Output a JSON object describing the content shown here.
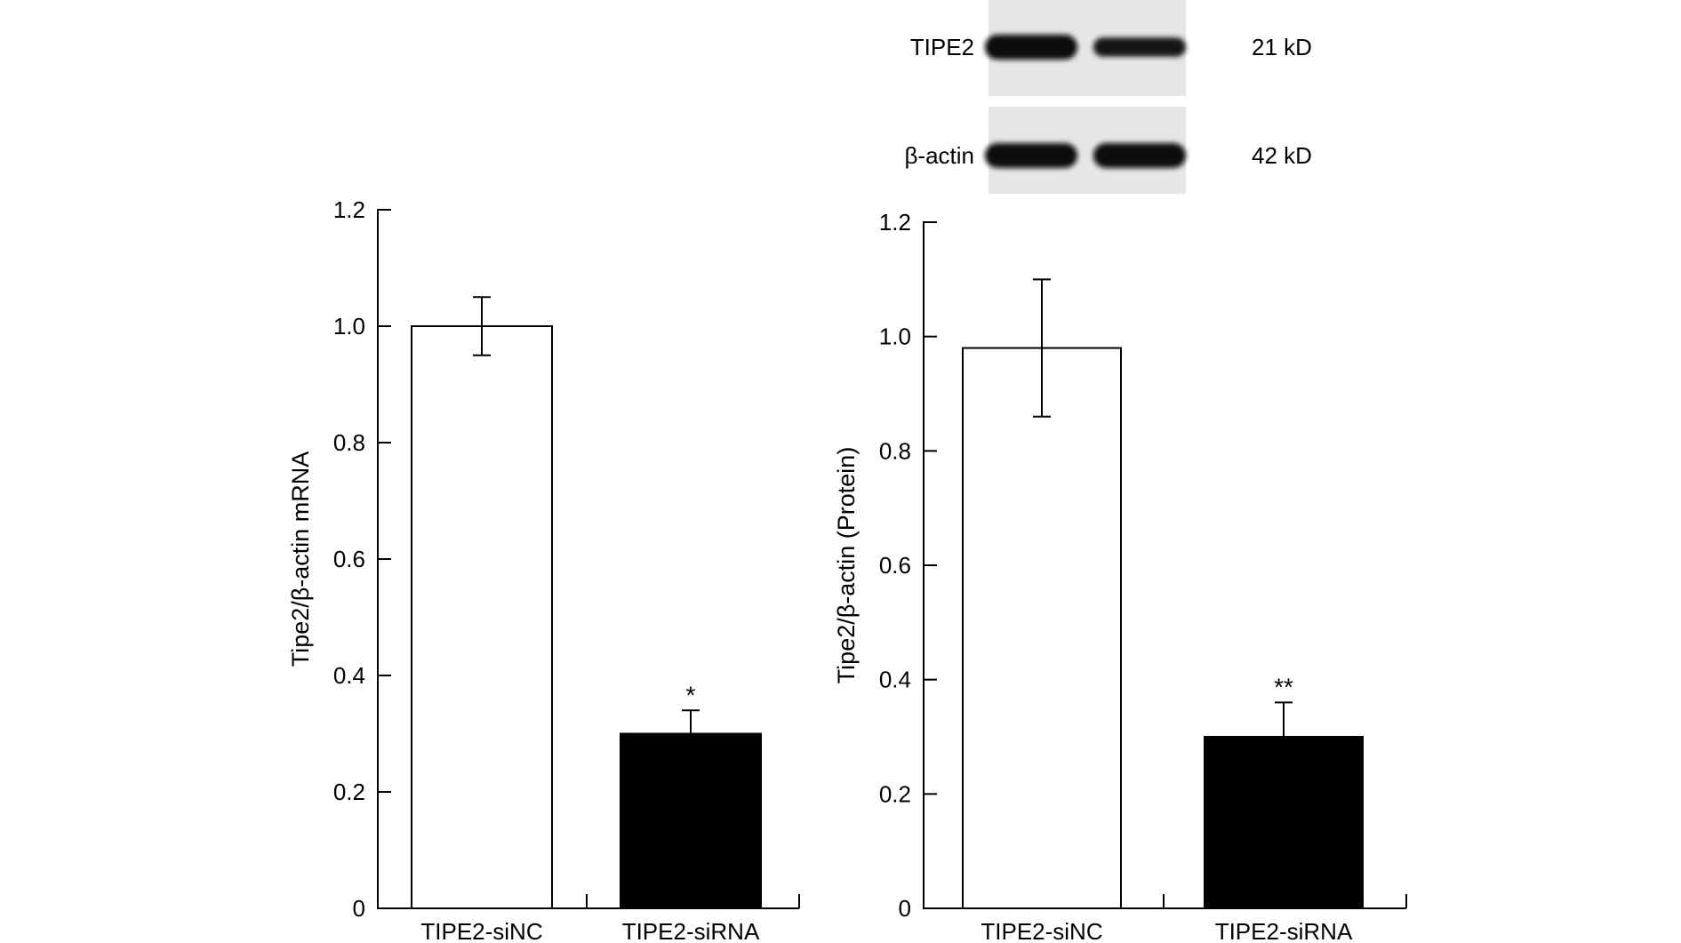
{
  "blot": {
    "bands": [
      {
        "label": "TIPE2",
        "size": "21 kD",
        "intensities": [
          1.0,
          0.6
        ]
      },
      {
        "label": "β-actin",
        "size": "42 kD",
        "intensities": [
          1.0,
          1.0
        ]
      }
    ]
  },
  "chart_data": [
    {
      "type": "bar",
      "categories": [
        "TIPE2-siNC",
        "TIPE2-siRNA"
      ],
      "values": [
        1.0,
        0.3
      ],
      "errors": [
        0.05,
        0.04
      ],
      "significance": [
        "",
        "*"
      ],
      "bar_colors": [
        "#ffffff",
        "#000000"
      ],
      "ylabel": "Tipe2/β-actin mRNA",
      "xlabel": "",
      "ylim": [
        0,
        1.2
      ],
      "yticks": [
        0,
        0.2,
        0.4,
        0.6,
        0.8,
        1.0,
        1.2
      ],
      "ytick_labels": [
        "0",
        "0.2",
        "0.4",
        "0.6",
        "0.8",
        "1.0",
        "1.2"
      ]
    },
    {
      "type": "bar",
      "categories": [
        "TIPE2-siNC",
        "TIPE2-siRNA"
      ],
      "values": [
        0.98,
        0.3
      ],
      "errors": [
        0.12,
        0.06
      ],
      "significance": [
        "",
        "**"
      ],
      "bar_colors": [
        "#ffffff",
        "#000000"
      ],
      "ylabel": "Tipe2/β-actin (Protein)",
      "xlabel": "",
      "ylim": [
        0,
        1.2
      ],
      "yticks": [
        0,
        0.2,
        0.4,
        0.6,
        0.8,
        1.0,
        1.2
      ],
      "ytick_labels": [
        "0",
        "0.2",
        "0.4",
        "0.6",
        "0.8",
        "1.0",
        "1.2"
      ]
    }
  ]
}
